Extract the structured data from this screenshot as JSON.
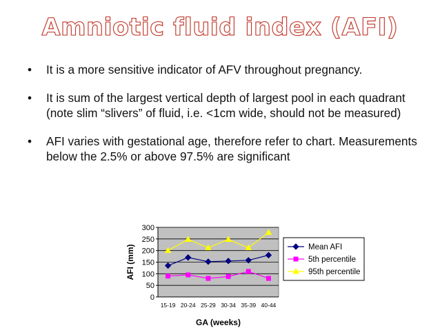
{
  "slide": {
    "title": "Amniotic fluid index (AFI)",
    "bullets": [
      "It is a more sensitive indicator of AFV throughout pregnancy.",
      "It is sum of the largest vertical depth of largest pool in each quadrant (note slim “slivers” of fluid, i.e. <1cm wide, should not be measured)",
      "AFI varies with gestational age, therefore refer to chart. Measurements below the 2.5% or above 97.5% are significant"
    ],
    "bullet_symbol": "•"
  },
  "chart_data": {
    "type": "line",
    "categories": [
      "15-19",
      "20-24",
      "25-29",
      "30-34",
      "35-39",
      "40-44"
    ],
    "series": [
      {
        "name": "Mean AFI",
        "values": [
          135,
          170,
          152,
          155,
          158,
          180
        ],
        "color": "#000080",
        "marker": "diamond"
      },
      {
        "name": "5th percentile",
        "values": [
          90,
          95,
          80,
          88,
          110,
          80
        ],
        "color": "#ff00ff",
        "marker": "square"
      },
      {
        "name": "95th percentile",
        "values": [
          200,
          248,
          212,
          248,
          212,
          278
        ],
        "color": "#ffff00",
        "marker": "triangle"
      }
    ],
    "xlabel": "GA (weeks)",
    "ylabel": "AFI (mm)",
    "ylim": [
      0,
      300
    ],
    "yticks": [
      0,
      50,
      100,
      150,
      200,
      250,
      300
    ],
    "grid": true,
    "legend": "right",
    "plot_background": "#c0c0c0"
  }
}
